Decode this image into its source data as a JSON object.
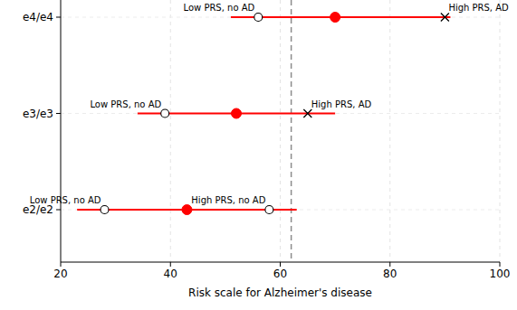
{
  "chart_data": {
    "type": "range",
    "xlabel": "Risk scale for Alzheimer's disease",
    "xlim": [
      20,
      100
    ],
    "xticks": [
      20,
      40,
      60,
      80,
      100
    ],
    "grid": true,
    "color": "#ff0000",
    "categories": [
      "e4/e4",
      "e3/e3",
      "e2/e2"
    ],
    "low": [
      51,
      34,
      23
    ],
    "high": [
      91,
      70,
      63
    ],
    "values": [
      70,
      52,
      43
    ],
    "reference_line": 62,
    "annotations": [
      {
        "category": "e4/e4",
        "x": 56,
        "text": "Low PRS, no AD",
        "marker": "circle"
      },
      {
        "category": "e4/e4",
        "x": 90,
        "text": "High PRS, AD",
        "marker": "x"
      },
      {
        "category": "e3/e3",
        "x": 39,
        "text": "Low PRS, no AD",
        "marker": "circle"
      },
      {
        "category": "e3/e3",
        "x": 65,
        "text": "High PRS, AD",
        "marker": "x"
      },
      {
        "category": "e2/e2",
        "x": 28,
        "text": "Low PRS, no AD",
        "marker": "circle"
      },
      {
        "category": "e2/e2",
        "x": 58,
        "text": "High PRS, no AD",
        "marker": "circle"
      }
    ]
  }
}
